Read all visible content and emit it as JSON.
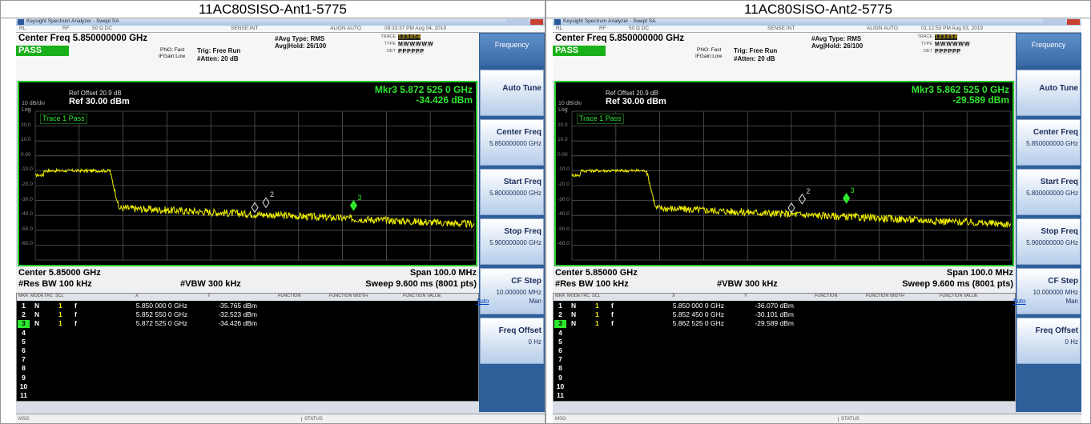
{
  "panels": [
    {
      "title": "11AC80SISO-Ant1-5775",
      "window": {
        "app_title": "Keysight Spectrum Analyzer - Swept SA",
        "status_items": [
          "RL",
          "RF",
          "50 Ω DC",
          "SENSE:INT",
          "ALIGN AUTO",
          "09:33:37 PM Aug 04, 2019"
        ],
        "center_freq": "Center Freq 5.850000000 GHz",
        "pass": "PASS",
        "settings": [
          "PNO: Fast",
          "IFGain:Low",
          "Trig: Free Run",
          "#Atten: 20 dB",
          "#Avg Type: RMS",
          "Avg|Hold: 26/100"
        ],
        "trace_info": {
          "labels": [
            "TRACE",
            "TYPE",
            "DET"
          ],
          "values": [
            "1 2 3 4 5 6",
            "M W W W W W",
            "P P P P P P"
          ]
        },
        "ref_offset": "Ref Offset 20.9 dB",
        "scale": "10 dB/div",
        "log": "Log",
        "ref_level": "Ref 30.00 dBm",
        "marker_readout": "Mkr3 5.872 525 0 GHz",
        "marker_level": "-34.426 dBm",
        "trace_status": "Trace 1 Pass",
        "grid_labels": [
          "20.0",
          "10.0",
          "0.00",
          "-10.0",
          "-20.0",
          "-30.0",
          "-40.0",
          "-50.0",
          "-60.0"
        ],
        "trace_marker_labels": [
          "2",
          "3"
        ],
        "footer": [
          "Center 5.85000 GHz",
          "Span 100.0 MHz",
          "#Res BW 100 kHz",
          "#VBW 300 kHz",
          "Sweep  9.600 ms (8001 pts)"
        ],
        "marker_table": {
          "columns": [
            "MKR",
            "MODE",
            "TRC",
            "SCL",
            "X",
            "Y",
            "FUNCTION",
            "FUNCTION WIDTH",
            "FUNCTION VALUE"
          ],
          "rows": [
            [
              "1",
              "N",
              "1",
              "f",
              "5.850 000 0 GHz",
              "-35.765 dBm"
            ],
            [
              "2",
              "N",
              "1",
              "f",
              "5.852 550 0 GHz",
              "-32.523 dBm"
            ],
            [
              "3",
              "N",
              "1",
              "f",
              "5.872 525 0 GHz",
              "-34.426 dBm"
            ],
            [
              "4"
            ],
            [
              "5"
            ],
            [
              "6"
            ],
            [
              "7"
            ],
            [
              "8"
            ],
            [
              "9"
            ],
            [
              "10"
            ],
            [
              "11"
            ]
          ]
        },
        "softkeys": [
          {
            "label": "Frequency"
          },
          {
            "label": "Auto Tune"
          },
          {
            "label": "Center Freq",
            "value": "5.850000000 GHz"
          },
          {
            "label": "Start Freq",
            "value": "5.800000000 GHz"
          },
          {
            "label": "Stop Freq",
            "value": "5.900000000 GHz"
          },
          {
            "label": "CF Step",
            "value": "10.000000 MHz",
            "options": [
              "Auto",
              "Man"
            ]
          },
          {
            "label": "Freq Offset",
            "value": "0 Hz"
          }
        ],
        "msg": "MSG",
        "status": "STATUS"
      }
    },
    {
      "title": "11AC80SISO-Ant2-5775",
      "window": {
        "app_title": "Keysight Spectrum Analyzer - Swept SA",
        "status_items": [
          "RL",
          "RF",
          "50 Ω DC",
          "SENSE:INT",
          "ALIGN AUTO",
          "01:12:53 PM Aug 03, 2019"
        ],
        "center_freq": "Center Freq 5.850000000 GHz",
        "pass": "PASS",
        "settings": [
          "PNO: Fast",
          "IFGain:Low",
          "Trig: Free Run",
          "#Atten: 20 dB",
          "#Avg Type: RMS",
          "Avg|Hold: 26/100"
        ],
        "trace_info": {
          "labels": [
            "TRACE",
            "TYPE",
            "DET"
          ],
          "values": [
            "1 2 3 4 5 6",
            "M W W W W W",
            "P P P P P P"
          ]
        },
        "ref_offset": "Ref Offset 20.9 dB",
        "scale": "10 dB/div",
        "log": "Log",
        "ref_level": "Ref 30.00 dBm",
        "marker_readout": "Mkr3 5.862 525 0 GHz",
        "marker_level": "-29.589 dBm",
        "trace_status": "Trace 1 Pass",
        "grid_labels": [
          "20.0",
          "10.0",
          "0.00",
          "-10.0",
          "-20.0",
          "-30.0",
          "-40.0",
          "-50.0",
          "-60.0"
        ],
        "trace_marker_labels": [
          "2",
          "3"
        ],
        "footer": [
          "Center 5.85000 GHz",
          "Span 100.0 MHz",
          "#Res BW 100 kHz",
          "#VBW 300 kHz",
          "Sweep  9.600 ms (8001 pts)"
        ],
        "marker_table": {
          "columns": [
            "MKR",
            "MODE",
            "TRC",
            "SCL",
            "X",
            "Y",
            "FUNCTION",
            "FUNCTION WIDTH",
            "FUNCTION VALUE"
          ],
          "rows": [
            [
              "1",
              "N",
              "1",
              "f",
              "5.850 000 0 GHz",
              "-36.070 dBm"
            ],
            [
              "2",
              "N",
              "1",
              "f",
              "5.852 450 0 GHz",
              "-30.101 dBm"
            ],
            [
              "3",
              "N",
              "1",
              "f",
              "5.862 525 0 GHz",
              "-29.589 dBm"
            ],
            [
              "4"
            ],
            [
              "5"
            ],
            [
              "6"
            ],
            [
              "7"
            ],
            [
              "8"
            ],
            [
              "9"
            ],
            [
              "10"
            ],
            [
              "11"
            ]
          ]
        },
        "softkeys": [
          {
            "label": "Frequency"
          },
          {
            "label": "Auto Tune"
          },
          {
            "label": "Center Freq",
            "value": "5.850000000 GHz"
          },
          {
            "label": "Start Freq",
            "value": "5.800000000 GHz"
          },
          {
            "label": "Stop Freq",
            "value": "5.900000000 GHz"
          },
          {
            "label": "CF Step",
            "value": "10.000000 MHz",
            "options": [
              "Auto",
              "Man"
            ]
          },
          {
            "label": "Freq Offset",
            "value": "0 Hz"
          }
        ],
        "msg": "MSG",
        "status": "STATUS"
      }
    }
  ]
}
